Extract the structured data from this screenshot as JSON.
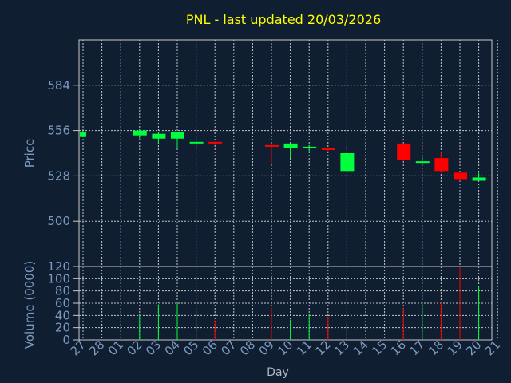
{
  "chart_data": {
    "type": "candlestick",
    "title": "PNL - last updated 20/03/2026",
    "xlabel": "Day",
    "price_panel": {
      "ylabel": "Price",
      "ylim": [
        472,
        612
      ],
      "yticks": [
        500,
        528,
        556,
        584
      ],
      "grid": true
    },
    "volume_panel": {
      "ylabel": "Volume (0000)",
      "ylim": [
        0,
        120
      ],
      "yticks": [
        0,
        20,
        40,
        60,
        80,
        100,
        120
      ],
      "grid": true
    },
    "x_labels": [
      "27",
      "28",
      "01",
      "02",
      "03",
      "04",
      "05",
      "06",
      "07",
      "08",
      "09",
      "10",
      "11",
      "12",
      "13",
      "14",
      "15",
      "16",
      "17",
      "18",
      "19",
      "20",
      "21"
    ],
    "candles": [
      {
        "x": "27",
        "open": 552,
        "high": 556,
        "low": 552,
        "close": 555,
        "volume": 0
      },
      {
        "x": "02",
        "open": 553,
        "high": 556,
        "low": 551,
        "close": 556,
        "volume": 40
      },
      {
        "x": "03",
        "open": 551,
        "high": 555,
        "low": 548,
        "close": 554,
        "volume": 58
      },
      {
        "x": "04",
        "open": 551,
        "high": 555,
        "low": 545,
        "close": 555,
        "volume": 60
      },
      {
        "x": "05",
        "open": 548,
        "high": 553,
        "low": 545,
        "close": 549,
        "volume": 48
      },
      {
        "x": "06",
        "open": 549,
        "high": 549,
        "low": 547,
        "close": 548,
        "volume": 32
      },
      {
        "x": "09",
        "open": 547,
        "high": 548,
        "low": 535,
        "close": 546,
        "volume": 53
      },
      {
        "x": "10",
        "open": 545,
        "high": 548,
        "low": 539,
        "close": 548,
        "volume": 33
      },
      {
        "x": "11",
        "open": 545,
        "high": 547,
        "low": 543,
        "close": 546,
        "volume": 42
      },
      {
        "x": "12",
        "open": 545,
        "high": 545,
        "low": 543,
        "close": 544,
        "volume": 38
      },
      {
        "x": "13",
        "open": 531,
        "high": 546,
        "low": 531,
        "close": 542,
        "volume": 30
      },
      {
        "x": "16",
        "open": 548,
        "high": 548,
        "low": 537,
        "close": 538,
        "volume": 53
      },
      {
        "x": "17",
        "open": 536,
        "high": 541,
        "low": 535,
        "close": 537,
        "volume": 62
      },
      {
        "x": "18",
        "open": 539,
        "high": 543,
        "low": 530,
        "close": 531,
        "volume": 62
      },
      {
        "x": "19",
        "open": 530,
        "high": 530,
        "low": 525,
        "close": 526,
        "volume": 120
      },
      {
        "x": "20",
        "open": 525,
        "high": 530,
        "low": 525,
        "close": 527,
        "volume": 88
      }
    ],
    "colors": {
      "up": "#00ff3c",
      "down": "#ff0000",
      "grid": "#c8c8c8",
      "axis_text": "#7d9ac2",
      "title": "#ffff00",
      "background": "#0f1e30"
    }
  }
}
